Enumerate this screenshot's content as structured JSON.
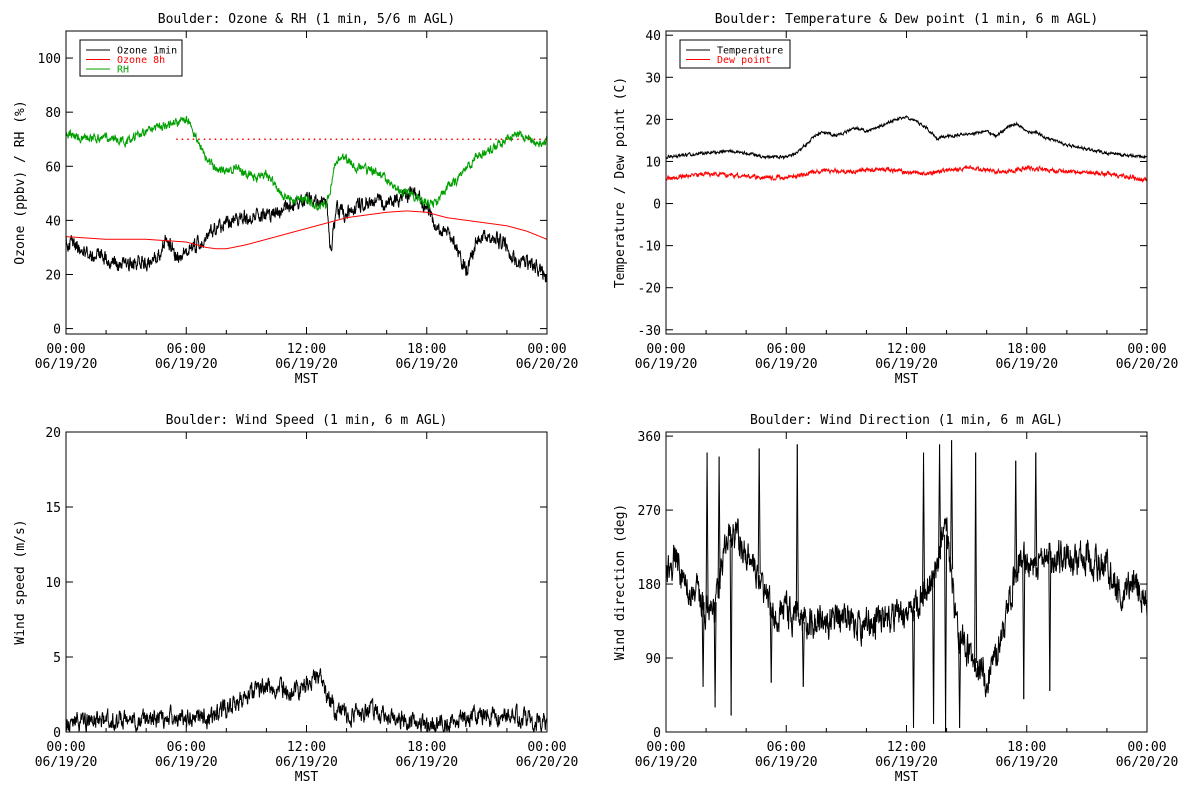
{
  "chart_data": [
    {
      "type": "line",
      "title": "Boulder: Ozone & RH (1 min, 5/6 m AGL)",
      "xlabel": "MST",
      "ylabel": "Ozone (ppbv) / RH (%)",
      "x_ticks": [
        {
          "hours": 0,
          "time": "00:00",
          "date": "06/19/20"
        },
        {
          "hours": 6,
          "time": "06:00",
          "date": "06/19/20"
        },
        {
          "hours": 12,
          "time": "12:00",
          "date": "06/19/20"
        },
        {
          "hours": 18,
          "time": "18:00",
          "date": "06/19/20"
        },
        {
          "hours": 24,
          "time": "00:00",
          "date": "06/20/20"
        }
      ],
      "xlim_hours": [
        0,
        24
      ],
      "ylim": [
        -2,
        110
      ],
      "y_ticks": [
        0,
        20,
        40,
        60,
        80,
        100
      ],
      "reference_line": {
        "y": 70,
        "style": "dotted",
        "color": "#ff0000"
      },
      "legend": {
        "position": "top-left",
        "entries": [
          {
            "name": "Ozone 1min",
            "color": "#000000"
          },
          {
            "name": "Ozone 8h",
            "color": "#ff0000"
          },
          {
            "name": "RH",
            "color": "#00a000"
          }
        ]
      },
      "series": [
        {
          "name": "Ozone 1min",
          "color": "#000000",
          "noise": 2.5,
          "x": [
            0,
            0.5,
            1,
            1.5,
            2,
            2.5,
            3,
            3.5,
            4,
            4.5,
            5,
            5.5,
            6,
            6.5,
            7,
            7.5,
            8,
            9,
            10,
            11,
            12,
            12.5,
            13,
            13.2,
            13.5,
            14,
            14.5,
            15,
            15.5,
            16,
            16.5,
            17,
            17.5,
            18,
            18.5,
            19,
            19.5,
            20,
            20.5,
            21,
            21.5,
            22,
            22.5,
            23,
            23.5,
            24
          ],
          "y": [
            33,
            30,
            28,
            27,
            25,
            24,
            23,
            24,
            25,
            26,
            33,
            27,
            29,
            30,
            35,
            37,
            39,
            41,
            42,
            44,
            47,
            48,
            47,
            30,
            44,
            43,
            45,
            47,
            48,
            46,
            48,
            50,
            49,
            45,
            38,
            36,
            30,
            20,
            34,
            35,
            33,
            30,
            25,
            24,
            23,
            19
          ]
        },
        {
          "name": "Ozone 8h",
          "color": "#ff0000",
          "noise": 0,
          "x": [
            0,
            2,
            4,
            6,
            7,
            7.5,
            8,
            9,
            10,
            11,
            12,
            13,
            14,
            15,
            16,
            17,
            18,
            19,
            20,
            21,
            22,
            23,
            24
          ],
          "y": [
            34,
            33,
            33,
            32,
            30,
            29.5,
            29.5,
            31,
            33,
            35,
            37,
            39,
            41,
            42,
            43,
            43.5,
            43,
            41,
            40,
            39,
            38,
            36,
            33
          ]
        },
        {
          "name": "RH",
          "color": "#00a000",
          "noise": 1.5,
          "x": [
            0,
            0.5,
            1,
            1.5,
            2,
            2.5,
            3,
            3.5,
            4,
            4.5,
            5,
            5.5,
            5.8,
            6.2,
            6.5,
            7,
            7.5,
            8,
            8.5,
            9,
            9.5,
            10,
            10.5,
            11,
            11.5,
            12,
            12.5,
            13,
            13.5,
            14,
            14.5,
            15,
            15.5,
            16,
            16.5,
            17,
            17.5,
            18,
            18.5,
            19,
            19.5,
            20,
            20.5,
            21,
            21.5,
            22,
            22.5,
            23,
            23.5,
            24
          ],
          "y": [
            73,
            71,
            70,
            70,
            71,
            70,
            69,
            71,
            73,
            74,
            75,
            76,
            78,
            76,
            70,
            63,
            59,
            58,
            60,
            57,
            56,
            57,
            52,
            48,
            47,
            48,
            45,
            45,
            63,
            62,
            60,
            59,
            58,
            55,
            51,
            50,
            48,
            46,
            46,
            52,
            55,
            60,
            63,
            65,
            67,
            70,
            72,
            70,
            68,
            70
          ]
        }
      ]
    },
    {
      "type": "line",
      "title": "Boulder: Temperature & Dew point (1 min, 6 m AGL)",
      "xlabel": "MST",
      "ylabel": "Temperature / Dew point (C)",
      "x_ticks": [
        {
          "hours": 0,
          "time": "00:00",
          "date": "06/19/20"
        },
        {
          "hours": 6,
          "time": "06:00",
          "date": "06/19/20"
        },
        {
          "hours": 12,
          "time": "12:00",
          "date": "06/19/20"
        },
        {
          "hours": 18,
          "time": "18:00",
          "date": "06/19/20"
        },
        {
          "hours": 24,
          "time": "00:00",
          "date": "06/20/20"
        }
      ],
      "xlim_hours": [
        0,
        24
      ],
      "ylim": [
        -31,
        41
      ],
      "y_ticks": [
        -30,
        -20,
        -10,
        0,
        10,
        20,
        30,
        40
      ],
      "legend": {
        "position": "top-left",
        "entries": [
          {
            "name": "Temperature",
            "color": "#000000"
          },
          {
            "name": "Dew point",
            "color": "#ff0000"
          }
        ]
      },
      "series": [
        {
          "name": "Temperature",
          "color": "#000000",
          "noise": 0.3,
          "x": [
            0,
            1,
            2,
            3,
            4,
            5,
            6,
            6.5,
            7,
            7.5,
            8,
            8.5,
            9,
            9.5,
            10,
            10.5,
            11,
            11.5,
            12,
            12.5,
            13,
            13.5,
            14,
            15,
            16,
            16.5,
            17,
            17.5,
            18,
            18.5,
            19,
            20,
            21,
            22,
            23,
            24
          ],
          "y": [
            11,
            11.5,
            12,
            12.5,
            12,
            11,
            11,
            12,
            14,
            16.5,
            17,
            16,
            17,
            18,
            17,
            18,
            19,
            20,
            20.5,
            19.5,
            18,
            15.5,
            16,
            16.5,
            17,
            16,
            18,
            19,
            17,
            17,
            15.5,
            14,
            13,
            12,
            11.5,
            11
          ]
        },
        {
          "name": "Dew point",
          "color": "#ff0000",
          "noise": 0.45,
          "x": [
            0,
            2,
            4,
            6,
            7,
            8,
            9,
            10,
            11,
            12,
            13,
            14,
            15,
            16,
            17,
            18,
            19,
            20,
            21,
            22,
            23,
            24
          ],
          "y": [
            6,
            7,
            6.5,
            6,
            7,
            8,
            7.5,
            8,
            8,
            7.5,
            7,
            8,
            8.5,
            8,
            7.5,
            8.5,
            8,
            7.5,
            7.5,
            7,
            6.5,
            5.5
          ]
        }
      ]
    },
    {
      "type": "line",
      "title": "Boulder: Wind Speed (1 min, 6 m AGL)",
      "xlabel": "MST",
      "ylabel": "Wind speed (m/s)",
      "x_ticks": [
        {
          "hours": 0,
          "time": "00:00",
          "date": "06/19/20"
        },
        {
          "hours": 6,
          "time": "06:00",
          "date": "06/19/20"
        },
        {
          "hours": 12,
          "time": "12:00",
          "date": "06/19/20"
        },
        {
          "hours": 18,
          "time": "18:00",
          "date": "06/19/20"
        },
        {
          "hours": 24,
          "time": "00:00",
          "date": "06/20/20"
        }
      ],
      "xlim_hours": [
        0,
        24
      ],
      "ylim": [
        0,
        20
      ],
      "y_ticks": [
        0,
        5,
        10,
        15,
        20
      ],
      "series": [
        {
          "name": "",
          "color": "#000000",
          "noise": 0.55,
          "floor": 0,
          "x": [
            0,
            1,
            2,
            3,
            4,
            5,
            6,
            7,
            8,
            9,
            10,
            11,
            11.5,
            12,
            12.5,
            13,
            13.5,
            14,
            15,
            16,
            17,
            18,
            19,
            20,
            21,
            22,
            23,
            24
          ],
          "y": [
            0.7,
            0.8,
            0.8,
            0.7,
            0.8,
            1.0,
            1.0,
            0.9,
            1.6,
            2.3,
            3.0,
            2.8,
            2.7,
            3.2,
            4.0,
            2.5,
            1.4,
            1.0,
            1.4,
            1.2,
            0.7,
            0.3,
            0.5,
            1.0,
            1.2,
            1.0,
            0.8,
            0.8
          ]
        }
      ]
    },
    {
      "type": "line",
      "title": "Boulder: Wind Direction (1 min, 6 m AGL)",
      "xlabel": "MST",
      "ylabel": "Wind direction (deg)",
      "x_ticks": [
        {
          "hours": 0,
          "time": "00:00",
          "date": "06/19/20"
        },
        {
          "hours": 6,
          "time": "06:00",
          "date": "06/19/20"
        },
        {
          "hours": 12,
          "time": "12:00",
          "date": "06/19/20"
        },
        {
          "hours": 18,
          "time": "18:00",
          "date": "06/19/20"
        },
        {
          "hours": 24,
          "time": "00:00",
          "date": "06/20/20"
        }
      ],
      "xlim_hours": [
        0,
        24
      ],
      "ylim": [
        0,
        365
      ],
      "y_ticks": [
        0,
        90,
        180,
        270,
        360
      ],
      "series": [
        {
          "name": "",
          "color": "#000000",
          "noise": 18,
          "floor": 0,
          "ceil": 360,
          "x": [
            0,
            0.5,
            1,
            1.5,
            2,
            2.5,
            3,
            3.5,
            4,
            4.5,
            5,
            5.5,
            6,
            6.5,
            7,
            8,
            9,
            10,
            11,
            12,
            12.5,
            13,
            13.5,
            14,
            14.5,
            15,
            15.5,
            16,
            16.5,
            17,
            17.5,
            18,
            18.5,
            19,
            20,
            21,
            22,
            22.5,
            23,
            23.5,
            24
          ],
          "y": [
            200,
            210,
            180,
            170,
            150,
            160,
            230,
            240,
            220,
            200,
            160,
            140,
            150,
            140,
            130,
            135,
            140,
            130,
            135,
            145,
            150,
            170,
            200,
            250,
            120,
            100,
            80,
            70,
            90,
            140,
            200,
            210,
            200,
            220,
            210,
            215,
            200,
            170,
            175,
            180,
            165
          ]
        }
      ],
      "spikes": [
        {
          "x": 1.8,
          "y": 55
        },
        {
          "x": 2.0,
          "y": 340
        },
        {
          "x": 2.4,
          "y": 30
        },
        {
          "x": 2.6,
          "y": 335
        },
        {
          "x": 3.2,
          "y": 20
        },
        {
          "x": 4.6,
          "y": 345
        },
        {
          "x": 5.2,
          "y": 60
        },
        {
          "x": 6.5,
          "y": 350
        },
        {
          "x": 6.8,
          "y": 55
        },
        {
          "x": 12.3,
          "y": 5
        },
        {
          "x": 12.8,
          "y": 340
        },
        {
          "x": 13.3,
          "y": 10
        },
        {
          "x": 13.6,
          "y": 350
        },
        {
          "x": 13.9,
          "y": 0
        },
        {
          "x": 14.2,
          "y": 355
        },
        {
          "x": 14.6,
          "y": 5
        },
        {
          "x": 15.4,
          "y": 340
        },
        {
          "x": 17.4,
          "y": 330
        },
        {
          "x": 17.8,
          "y": 40
        },
        {
          "x": 18.4,
          "y": 340
        },
        {
          "x": 19.1,
          "y": 50
        }
      ]
    }
  ]
}
